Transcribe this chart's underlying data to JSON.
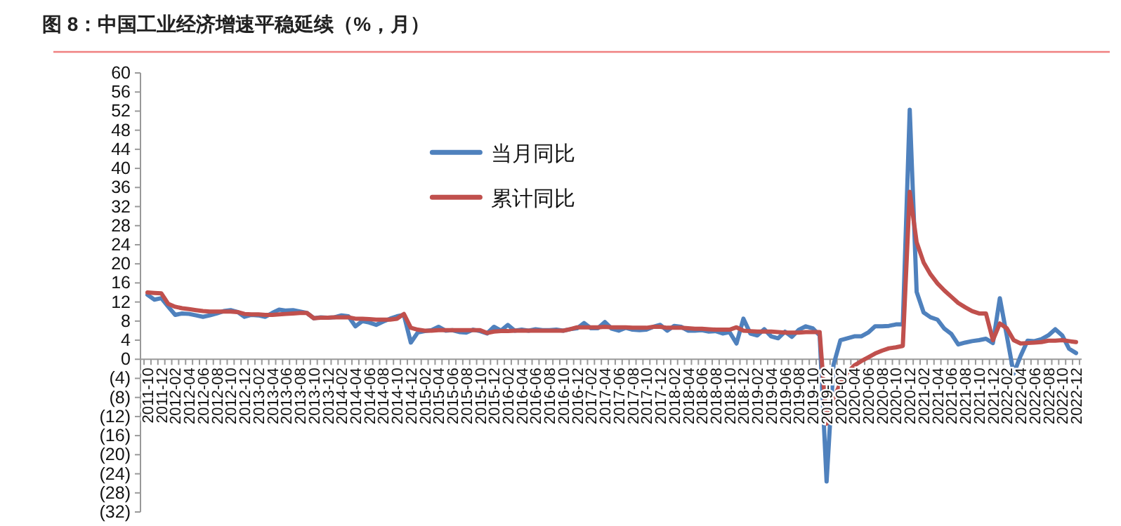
{
  "chart_data": {
    "type": "line",
    "title": "图 8：中国工业经济增速平稳延续（%，月）",
    "categories": [
      "2011-10",
      null,
      "2011-12",
      null,
      "2012-02",
      null,
      "2012-04",
      null,
      "2012-06",
      null,
      "2012-08",
      null,
      "2012-10",
      null,
      "2012-12",
      null,
      "2013-02",
      null,
      "2013-04",
      null,
      "2013-06",
      null,
      "2013-08",
      null,
      "2013-10",
      null,
      "2013-12",
      null,
      "2014-02",
      null,
      "2014-04",
      null,
      "2014-06",
      null,
      "2014-08",
      null,
      "2014-10",
      null,
      "2014-12",
      null,
      "2015-02",
      null,
      "2015-04",
      null,
      "2015-06",
      null,
      "2015-08",
      null,
      "2015-10",
      null,
      "2015-12",
      null,
      "2016-02",
      null,
      "2016-04",
      null,
      "2016-06",
      null,
      "2016-08",
      null,
      "2016-10",
      null,
      "2016-12",
      null,
      "2017-02",
      null,
      "2017-04",
      null,
      "2017-06",
      null,
      "2017-08",
      null,
      "2017-10",
      null,
      "2017-12",
      null,
      "2018-02",
      null,
      "2018-04",
      null,
      "2018-06",
      null,
      "2018-08",
      null,
      "2018-10",
      null,
      "2018-12",
      null,
      "2019-02",
      null,
      "2019-04",
      null,
      "2019-06",
      null,
      "2019-08",
      null,
      "2019-10",
      null,
      "2019-12",
      null,
      "2020-02",
      null,
      "2020-04",
      null,
      "2020-06",
      null,
      "2020-08",
      null,
      "2020-10",
      null,
      "2020-12",
      null,
      "2021-02",
      null,
      "2021-04",
      null,
      "2021-06",
      null,
      "2021-08",
      null,
      "2021-10",
      null,
      "2021-12",
      null,
      "2022-02",
      null,
      "2022-04",
      null,
      "2022-06",
      null,
      "2022-08",
      null,
      "2022-10",
      null,
      "2022-12"
    ],
    "series": [
      {
        "name": "当月同比",
        "color": "#4f81bd",
        "values": [
          13.5,
          12.5,
          12.8,
          11,
          9.3,
          9.6,
          9.5,
          9.2,
          8.9,
          9.2,
          9.6,
          10.1,
          10.3,
          9.9,
          8.9,
          9.3,
          9.2,
          8.9,
          9.7,
          10.4,
          10.2,
          10.3,
          10.0,
          9.7,
          8.6,
          8.8,
          8.7,
          8.8,
          9.2,
          9.0,
          6.9,
          8.0,
          7.7,
          7.2,
          7.9,
          8.5,
          9.0,
          9.3,
          3.5,
          5.6,
          5.9,
          6.1,
          6.8,
          6.0,
          6.1,
          5.7,
          5.6,
          6.2,
          5.9,
          5.4,
          6.8,
          6.0,
          7.2,
          6.0,
          6.2,
          6.0,
          6.3,
          6.1,
          6.1,
          6.2,
          6.0,
          6.3,
          6.5,
          7.6,
          6.5,
          6.5,
          7.8,
          6.4,
          6.0,
          6.6,
          6.2,
          6.1,
          6.2,
          6.8,
          7.2,
          6.0,
          7.0,
          6.8,
          6.0,
          6.0,
          6.1,
          5.8,
          5.9,
          5.4,
          5.7,
          3.3,
          8.5,
          5.4,
          5.0,
          6.3,
          4.8,
          4.4,
          5.8,
          4.7,
          6.2,
          6.9,
          6.5,
          5.0,
          -25.6,
          -1.2,
          4.0,
          4.4,
          4.8,
          4.8,
          5.6,
          6.9,
          6.9,
          7.0,
          7.3,
          7.3,
          52.3,
          14.1,
          9.8,
          8.8,
          8.3,
          6.4,
          5.3,
          3.1,
          3.5,
          3.8,
          4.0,
          4.3,
          3.4,
          12.8,
          5.0,
          -3.0,
          0.7,
          3.9,
          3.8,
          4.2,
          5.0,
          6.3,
          5.0,
          2.2,
          1.3
        ]
      },
      {
        "name": "累计同比",
        "color": "#c0504d",
        "values": [
          14,
          13.9,
          13.8,
          11.6,
          11.0,
          10.7,
          10.5,
          10.3,
          10.1,
          10.0,
          10.0,
          10.0,
          10.0,
          9.9,
          9.5,
          9.4,
          9.4,
          9.3,
          9.3,
          9.4,
          9.5,
          9.6,
          9.7,
          9.7,
          8.6,
          8.7,
          8.7,
          8.8,
          8.8,
          8.8,
          8.5,
          8.5,
          8.4,
          8.3,
          8.3,
          8.3,
          8.5,
          9.5,
          6.6,
          6.2,
          6.0,
          6.0,
          6.1,
          6.1,
          6.1,
          6.1,
          6.1,
          6.1,
          6.1,
          5.5,
          5.8,
          5.9,
          5.9,
          6.0,
          6.0,
          6.0,
          6.0,
          6.0,
          6.0,
          6.0,
          6.0,
          6.3,
          6.7,
          6.7,
          6.7,
          6.7,
          6.8,
          6.7,
          6.7,
          6.7,
          6.6,
          6.6,
          6.6,
          6.8,
          6.8,
          6.6,
          6.6,
          6.6,
          6.5,
          6.4,
          6.4,
          6.3,
          6.2,
          6.2,
          6.2,
          6.7,
          6.0,
          5.9,
          5.8,
          5.8,
          5.8,
          5.7,
          5.6,
          5.6,
          5.6,
          5.7,
          5.7,
          5.7,
          -13.5,
          -8.4,
          -4.9,
          -2.8,
          -1.3,
          -0.4,
          0.4,
          1.2,
          1.8,
          2.3,
          2.5,
          2.8,
          35.1,
          24.5,
          20.3,
          17.8,
          15.9,
          14.4,
          13.1,
          11.8,
          10.9,
          10.1,
          9.6,
          9.6,
          4.0,
          7.5,
          6.5,
          4.0,
          3.3,
          3.4,
          3.5,
          3.6,
          3.9,
          3.9,
          4.0,
          3.8,
          3.6
        ]
      }
    ],
    "ylim": [
      -32,
      60
    ],
    "yticks": [
      60,
      56,
      52,
      48,
      44,
      40,
      36,
      32,
      28,
      24,
      20,
      16,
      12,
      8,
      4,
      0,
      {
        "value": -4,
        "label": "(4)"
      },
      {
        "value": -8,
        "label": "(8)"
      },
      {
        "value": -12,
        "label": "(12)"
      },
      {
        "value": -16,
        "label": "(16)"
      },
      {
        "value": -20,
        "label": "(20)"
      },
      {
        "value": -24,
        "label": "(24)"
      },
      {
        "value": -28,
        "label": "(28)"
      },
      {
        "value": -32,
        "label": "(32)"
      }
    ],
    "legend": "top",
    "grid": false,
    "marker": "none",
    "line_style": "solid"
  }
}
